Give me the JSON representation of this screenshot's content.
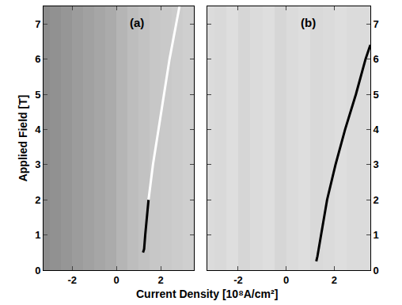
{
  "chart_data": [
    {
      "type": "heatmap",
      "title": "(a)",
      "y_label": "Applied Field [T]",
      "x_label": "Current Density [10⁸A/cm²]",
      "xlim": [
        -3.3,
        3.5
      ],
      "xticks": [
        -2,
        0,
        2
      ],
      "ylim": [
        0,
        7.5
      ],
      "yticks": [
        0,
        1,
        2,
        3,
        4,
        5,
        6,
        7
      ],
      "cell_x": [
        -3.25,
        -2.75,
        -2.25,
        -1.75,
        -1.25,
        -0.75,
        -0.25,
        0.25,
        0.75,
        1.25,
        1.75,
        2.25,
        2.75,
        3.25
      ],
      "cell_y": [
        1.875,
        5.625
      ],
      "cells": [
        [
          0.55,
          0.57,
          0.59,
          0.61,
          0.63,
          0.65,
          0.67,
          0.71,
          0.74,
          0.76,
          0.78,
          0.79,
          0.8,
          0.81
        ],
        [
          0.55,
          0.57,
          0.59,
          0.61,
          0.63,
          0.65,
          0.67,
          0.71,
          0.74,
          0.76,
          0.78,
          0.79,
          0.8,
          0.81
        ]
      ],
      "zlim": [
        0,
        1
      ],
      "series": [
        {
          "color": "#000000",
          "x": [
            1.2,
            1.25,
            1.3,
            1.38,
            1.45
          ],
          "values": [
            0.5,
            0.6,
            1.0,
            1.5,
            2.0
          ]
        },
        {
          "color": "#ffffff",
          "x": [
            1.45,
            1.65,
            1.9,
            2.15,
            2.4,
            2.7,
            2.85
          ],
          "values": [
            2.0,
            3.0,
            4.0,
            5.0,
            6.0,
            7.0,
            7.5
          ]
        }
      ]
    },
    {
      "type": "heatmap",
      "title": "(b)",
      "xlim": [
        -3.3,
        3.5
      ],
      "xticks": [
        -2,
        0,
        2
      ],
      "ylim": [
        0,
        7.5
      ],
      "yticks": [
        0,
        1,
        2,
        3,
        4,
        5,
        6,
        7
      ],
      "cell_x": [
        -3.25,
        -2.75,
        -2.25,
        -1.75,
        -1.25,
        -0.75,
        -0.25,
        0.25,
        0.75,
        1.25,
        1.75,
        2.25,
        2.75,
        3.25
      ],
      "cell_y": [
        1.875,
        5.625
      ],
      "cells": [
        [
          0.86,
          0.85,
          0.87,
          0.84,
          0.86,
          0.87,
          0.84,
          0.86,
          0.87,
          0.85,
          0.86,
          0.87,
          0.86,
          0.86
        ],
        [
          0.86,
          0.85,
          0.87,
          0.84,
          0.86,
          0.87,
          0.84,
          0.86,
          0.87,
          0.85,
          0.86,
          0.87,
          0.86,
          0.86
        ]
      ],
      "zlim": [
        0,
        1
      ],
      "series": [
        {
          "color": "#000000",
          "x": [
            1.25,
            1.3,
            1.45,
            1.7,
            2.05,
            2.45,
            2.9,
            3.3,
            3.5
          ],
          "values": [
            0.25,
            0.4,
            1.0,
            2.0,
            3.0,
            4.0,
            5.0,
            6.0,
            6.4
          ]
        }
      ]
    }
  ]
}
